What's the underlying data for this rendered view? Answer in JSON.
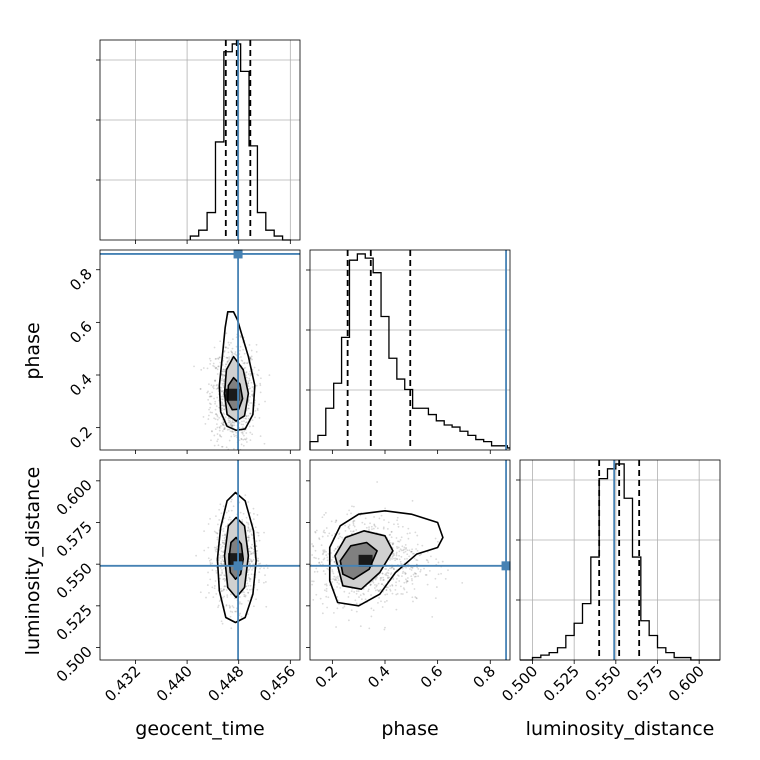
{
  "colors": {
    "truth": "#4682b4",
    "hist": "#000000",
    "grid": "#b0b0b0",
    "scatter": "#555555"
  },
  "chart_data": {
    "type": "corner",
    "parameters": [
      "geocent_time",
      "phase",
      "luminosity_distance"
    ],
    "axis_labels": {
      "geocent_time": "geocent_time",
      "phase": "phase",
      "luminosity_distance": "luminosity_distance"
    },
    "truths": {
      "geocent_time": 0.4479,
      "phase": 0.86,
      "luminosity_distance": 0.549
    },
    "ranges": {
      "geocent_time": [
        0.4265,
        0.4575
      ],
      "phase": [
        0.115,
        0.875
      ],
      "luminosity_distance": [
        0.4925,
        0.6125
      ]
    },
    "ticks": {
      "geocent_time": [
        "0.432",
        "0.440",
        "0.448",
        "0.456"
      ],
      "phase": [
        "0.2",
        "0.4",
        "0.6",
        "0.8"
      ],
      "luminosity_distance": [
        "0.500",
        "0.525",
        "0.550",
        "0.575",
        "0.600"
      ]
    },
    "quantiles": {
      "geocent_time": [
        0.446,
        0.4477,
        0.4498
      ],
      "phase": [
        0.258,
        0.346,
        0.496
      ],
      "luminosity_distance": [
        0.54,
        0.552,
        0.564
      ]
    },
    "histograms": {
      "geocent_time": {
        "edges": [
          0.4405,
          0.4418,
          0.4431,
          0.4444,
          0.4457,
          0.447,
          0.4483,
          0.4496,
          0.4509,
          0.4522,
          0.4535,
          0.4548,
          0.4561
        ],
        "counts": [
          2,
          5,
          14,
          50,
          96,
          100,
          86,
          48,
          14,
          5,
          2,
          0
        ]
      },
      "phase": {
        "edges": [
          0.115,
          0.145,
          0.175,
          0.205,
          0.235,
          0.265,
          0.295,
          0.325,
          0.355,
          0.385,
          0.415,
          0.445,
          0.475,
          0.505,
          0.535,
          0.565,
          0.595,
          0.625,
          0.655,
          0.685,
          0.715,
          0.745,
          0.775,
          0.805,
          0.835,
          0.865,
          0.875
        ],
        "counts": [
          4,
          7,
          20,
          32,
          54,
          91,
          94,
          92,
          85,
          64,
          44,
          34,
          29,
          20,
          20,
          17,
          14,
          12,
          11,
          9,
          7,
          5,
          4,
          2,
          2,
          1
        ]
      },
      "luminosity_distance": {
        "edges": [
          0.4925,
          0.5,
          0.505,
          0.51,
          0.515,
          0.52,
          0.525,
          0.53,
          0.535,
          0.54,
          0.545,
          0.55,
          0.555,
          0.56,
          0.565,
          0.57,
          0.575,
          0.58,
          0.585,
          0.59,
          0.595,
          0.6,
          0.6125
        ],
        "counts": [
          0,
          1,
          2,
          3,
          5,
          10,
          15,
          23,
          42,
          74,
          78,
          80,
          66,
          42,
          16,
          10,
          5,
          3,
          1,
          1,
          0,
          0
        ]
      }
    },
    "pairs": [
      {
        "x": "geocent_time",
        "y": "phase",
        "contours": [
          [
            [
              0.4472,
              0.64
            ],
            [
              0.4478,
              0.61
            ],
            [
              0.4484,
              0.56
            ],
            [
              0.4495,
              0.47
            ],
            [
              0.4505,
              0.36
            ],
            [
              0.4502,
              0.25
            ],
            [
              0.449,
              0.195
            ],
            [
              0.4476,
              0.19
            ],
            [
              0.4462,
              0.205
            ],
            [
              0.4452,
              0.26
            ],
            [
              0.445,
              0.36
            ],
            [
              0.4455,
              0.48
            ],
            [
              0.4459,
              0.58
            ],
            [
              0.4463,
              0.64
            ]
          ],
          [
            [
              0.4472,
              0.47
            ],
            [
              0.4487,
              0.42
            ],
            [
              0.4495,
              0.33
            ],
            [
              0.4489,
              0.245
            ],
            [
              0.4476,
              0.225
            ],
            [
              0.4462,
              0.25
            ],
            [
              0.4458,
              0.33
            ],
            [
              0.4461,
              0.42
            ]
          ],
          [
            [
              0.4472,
              0.39
            ],
            [
              0.4482,
              0.365
            ],
            [
              0.4486,
              0.31
            ],
            [
              0.448,
              0.27
            ],
            [
              0.447,
              0.268
            ],
            [
              0.4463,
              0.3
            ],
            [
              0.4464,
              0.36
            ]
          ]
        ],
        "density_center": [
          0.4472,
          0.325
        ],
        "density_spread": [
          0.0016,
          0.085
        ]
      },
      {
        "x": "geocent_time",
        "y": "luminosity_distance",
        "contours": [
          [
            [
              0.4475,
              0.593
            ],
            [
              0.449,
              0.588
            ],
            [
              0.4503,
              0.57
            ],
            [
              0.4507,
              0.552
            ],
            [
              0.4502,
              0.532
            ],
            [
              0.449,
              0.518
            ],
            [
              0.4475,
              0.515
            ],
            [
              0.446,
              0.518
            ],
            [
              0.445,
              0.534
            ],
            [
              0.4447,
              0.553
            ],
            [
              0.4452,
              0.572
            ],
            [
              0.4462,
              0.588
            ]
          ],
          [
            [
              0.4476,
              0.578
            ],
            [
              0.4489,
              0.573
            ],
            [
              0.4495,
              0.555
            ],
            [
              0.4489,
              0.536
            ],
            [
              0.4476,
              0.53
            ],
            [
              0.4463,
              0.536
            ],
            [
              0.4458,
              0.555
            ],
            [
              0.4464,
              0.573
            ]
          ],
          [
            [
              0.4476,
              0.566
            ],
            [
              0.4484,
              0.562
            ],
            [
              0.4487,
              0.553
            ],
            [
              0.4483,
              0.544
            ],
            [
              0.4475,
              0.541
            ],
            [
              0.4467,
              0.545
            ],
            [
              0.4465,
              0.554
            ],
            [
              0.4468,
              0.563
            ]
          ]
        ],
        "density_center": [
          0.4476,
          0.553
        ],
        "density_spread": [
          0.0015,
          0.012
        ]
      },
      {
        "x": "phase",
        "y": "luminosity_distance",
        "contours": [
          [
            [
              0.19,
              0.56
            ],
            [
              0.23,
              0.573
            ],
            [
              0.3,
              0.58
            ],
            [
              0.4,
              0.582
            ],
            [
              0.5,
              0.58
            ],
            [
              0.6,
              0.575
            ],
            [
              0.62,
              0.566
            ],
            [
              0.6,
              0.56
            ],
            [
              0.52,
              0.556
            ],
            [
              0.44,
              0.545
            ],
            [
              0.38,
              0.532
            ],
            [
              0.3,
              0.525
            ],
            [
              0.22,
              0.527
            ],
            [
              0.19,
              0.54
            ]
          ],
          [
            [
              0.21,
              0.555
            ],
            [
              0.25,
              0.566
            ],
            [
              0.32,
              0.57
            ],
            [
              0.4,
              0.567
            ],
            [
              0.43,
              0.558
            ],
            [
              0.38,
              0.545
            ],
            [
              0.31,
              0.535
            ],
            [
              0.24,
              0.537
            ]
          ],
          [
            [
              0.23,
              0.552
            ],
            [
              0.27,
              0.561
            ],
            [
              0.33,
              0.563
            ],
            [
              0.37,
              0.558
            ],
            [
              0.34,
              0.547
            ],
            [
              0.28,
              0.541
            ],
            [
              0.24,
              0.544
            ]
          ]
        ],
        "density_center": [
          0.33,
          0.552
        ],
        "density_spread": [
          0.1,
          0.012
        ]
      }
    ]
  }
}
